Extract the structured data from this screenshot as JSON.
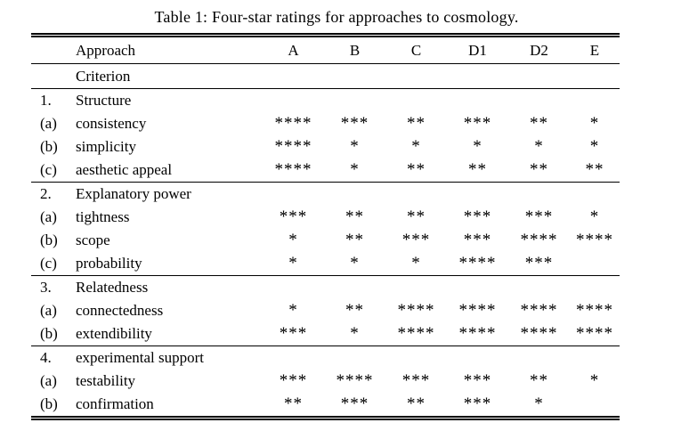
{
  "title": "Table 1: Four-star ratings for approaches to cosmology.",
  "table": {
    "header": {
      "approach_label": "Approach",
      "criterion_label": "Criterion",
      "columns": [
        "A",
        "B",
        "C",
        "D1",
        "D2",
        "E"
      ]
    },
    "sections": [
      {
        "number": "1.",
        "name": "Structure",
        "rows": [
          {
            "label": "(a)",
            "criterion": "consistency",
            "ratings": [
              "****",
              "***",
              "**",
              "***",
              "**",
              "*"
            ]
          },
          {
            "label": "(b)",
            "criterion": "simplicity",
            "ratings": [
              "****",
              "*",
              "*",
              "*",
              "*",
              "*"
            ]
          },
          {
            "label": "(c)",
            "criterion": "aesthetic appeal",
            "ratings": [
              "****",
              "*",
              "**",
              "**",
              "**",
              "**"
            ]
          }
        ]
      },
      {
        "number": "2.",
        "name": "Explanatory power",
        "rows": [
          {
            "label": "(a)",
            "criterion": "tightness",
            "ratings": [
              "***",
              "**",
              "**",
              "***",
              "***",
              "*"
            ]
          },
          {
            "label": "(b)",
            "criterion": "scope",
            "ratings": [
              "*",
              "**",
              "***",
              "***",
              "****",
              "****"
            ]
          },
          {
            "label": "(c)",
            "criterion": "probability",
            "ratings": [
              "*",
              "*",
              "*",
              "****",
              "***",
              ""
            ]
          }
        ]
      },
      {
        "number": "3.",
        "name": "Relatedness",
        "rows": [
          {
            "label": "(a)",
            "criterion": "connectedness",
            "ratings": [
              "*",
              "**",
              "****",
              "****",
              "****",
              "****"
            ]
          },
          {
            "label": "(b)",
            "criterion": "extendibility",
            "ratings": [
              "***",
              "*",
              "****",
              "****",
              "****",
              "****"
            ]
          }
        ]
      },
      {
        "number": "4.",
        "name": "experimental support",
        "rows": [
          {
            "label": "(a)",
            "criterion": "testability",
            "ratings": [
              "***",
              "****",
              "***",
              "***",
              "**",
              "*"
            ]
          },
          {
            "label": "(b)",
            "criterion": "confirmation",
            "ratings": [
              "**",
              "***",
              "**",
              "***",
              "*",
              ""
            ]
          }
        ]
      }
    ]
  }
}
